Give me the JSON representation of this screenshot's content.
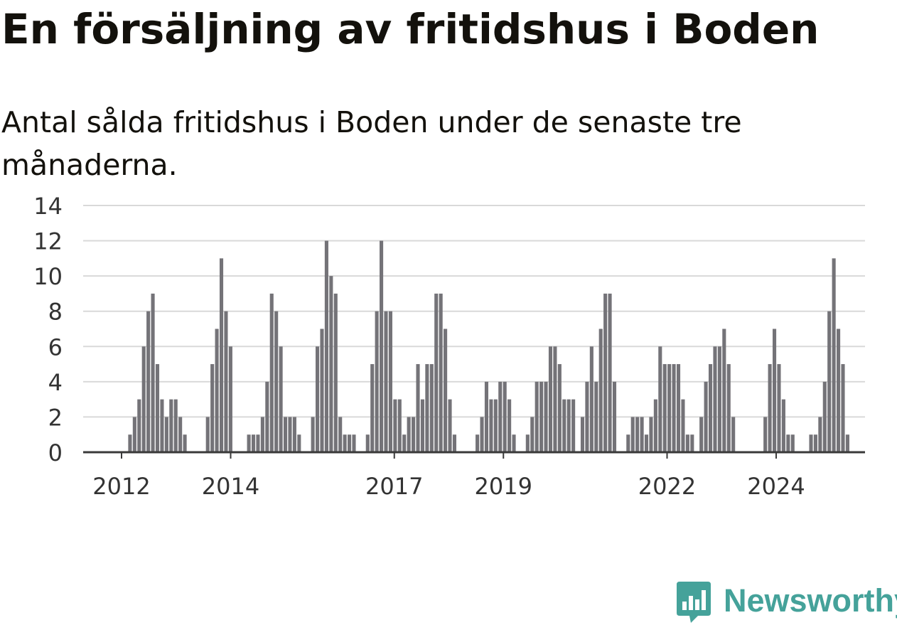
{
  "title": "En försäljning av fritidshus i Boden",
  "subtitle": "Antal sålda fritidshus i Boden under de senaste tre månaderna.",
  "brand": {
    "name": "Newsworthy",
    "icon": "newsworthy-logo-icon",
    "color": "#45a29a"
  },
  "chart_data": {
    "type": "bar",
    "title": "En försäljning av fritidshus i Boden",
    "subtitle": "Antal sålda fritidshus i Boden under de senaste tre månaderna.",
    "xlabel": "",
    "ylabel": "",
    "ylim": [
      0,
      14
    ],
    "yticks": [
      0,
      2,
      4,
      6,
      8,
      10,
      12,
      14
    ],
    "xticks": [
      "2012",
      "2014",
      "2017",
      "2019",
      "2022",
      "2024"
    ],
    "grid": true,
    "bar_color": "#747378",
    "highlight_color": "#009b8f",
    "highlight": {
      "index": 167,
      "label": "1"
    },
    "values": [
      0,
      0,
      0,
      0,
      0,
      0,
      0,
      0,
      0,
      1,
      2,
      3,
      6,
      8,
      9,
      5,
      3,
      2,
      3,
      3,
      2,
      1,
      0,
      0,
      0,
      0,
      2,
      5,
      7,
      11,
      8,
      6,
      0,
      0,
      0,
      1,
      1,
      1,
      2,
      4,
      9,
      8,
      6,
      2,
      2,
      2,
      1,
      0,
      0,
      2,
      6,
      7,
      12,
      10,
      9,
      2,
      1,
      1,
      1,
      0,
      0,
      1,
      5,
      8,
      12,
      8,
      8,
      3,
      3,
      1,
      2,
      2,
      5,
      3,
      5,
      5,
      9,
      9,
      7,
      3,
      1,
      0,
      0,
      0,
      0,
      1,
      2,
      4,
      3,
      3,
      4,
      4,
      3,
      1,
      0,
      0,
      1,
      2,
      4,
      4,
      4,
      6,
      6,
      5,
      3,
      3,
      3,
      0,
      2,
      4,
      6,
      4,
      7,
      9,
      9,
      4,
      0,
      0,
      1,
      2,
      2,
      2,
      1,
      2,
      3,
      6,
      5,
      5,
      5,
      5,
      3,
      1,
      1,
      0,
      2,
      4,
      5,
      6,
      6,
      7,
      5,
      2,
      0,
      0,
      0,
      0,
      0,
      0,
      2,
      5,
      7,
      5,
      3,
      1,
      1,
      0,
      0,
      0,
      1,
      1,
      2,
      4,
      8,
      11,
      7,
      5,
      1
    ]
  }
}
